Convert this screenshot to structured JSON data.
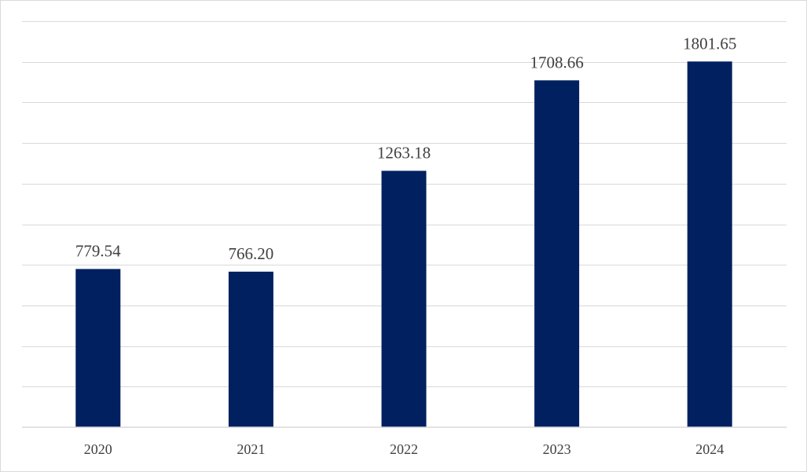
{
  "chart_data": {
    "type": "bar",
    "title": "",
    "xlabel": "",
    "ylabel": "",
    "categories": [
      "2020",
      "2021",
      "2022",
      "2023",
      "2024"
    ],
    "values": [
      779.54,
      766.2,
      1263.18,
      1708.66,
      1801.65
    ],
    "value_labels": [
      "779.54",
      "766.20",
      "1263.18",
      "1708.66",
      "1801.65"
    ],
    "ylim": [
      0,
      2000
    ],
    "y_gridline_step": 200,
    "grid": true,
    "legend": "none",
    "bar_color": "#002060"
  }
}
